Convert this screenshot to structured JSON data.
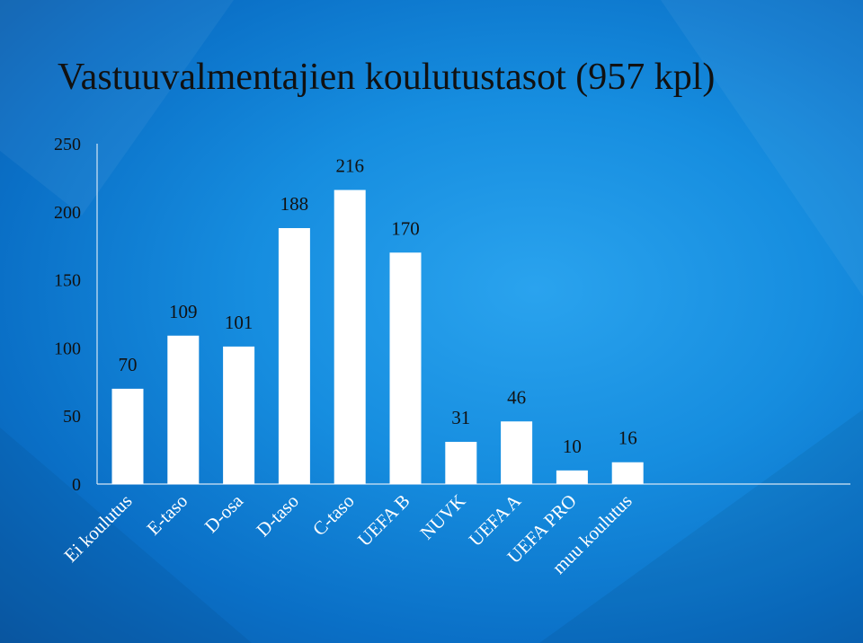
{
  "slide": {
    "title": "Vastuuvalmentajien koulutustasot (957 kpl)"
  },
  "chart_data": {
    "type": "bar",
    "categories": [
      "Ei koulutus",
      "E-taso",
      "D-osa",
      "D-taso",
      "C-taso",
      "UEFA B",
      "NUVK",
      "UEFA A",
      "UEFA PRO",
      "muu koulutus"
    ],
    "values": [
      70,
      109,
      101,
      188,
      216,
      170,
      31,
      46,
      10,
      16
    ],
    "data_labels": [
      "70",
      "109",
      "101",
      "188",
      "216",
      "170",
      "31",
      "46",
      "10",
      "16"
    ],
    "yticks": [
      0,
      50,
      100,
      150,
      200,
      250
    ],
    "ylim": [
      0,
      250
    ],
    "xlabel": "",
    "ylabel": "",
    "grid": false,
    "bar_color": "#ffffff",
    "axis_color": "#d6e6f5"
  }
}
